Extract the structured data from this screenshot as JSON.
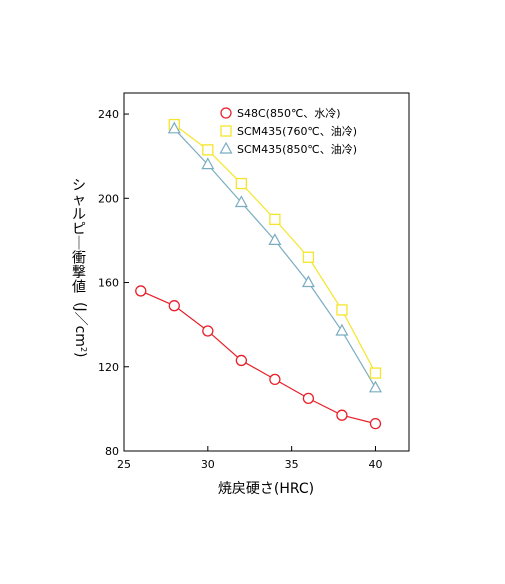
{
  "chart_data": {
    "type": "line",
    "title": "",
    "xlabel": "焼戻硬さ(HRC)",
    "ylabel": "シャルピー衝撃値(J/cm²)",
    "ylabel_main": "シャルピー衝撃値",
    "ylabel_unit_j": "J",
    "ylabel_unit_slash": "／",
    "ylabel_unit_cm": "cm",
    "ylabel_unit_sup": "2",
    "xlim": [
      25,
      42
    ],
    "ylim": [
      80,
      250
    ],
    "xticks": [
      25,
      30,
      35,
      40
    ],
    "yticks": [
      80,
      120,
      160,
      200,
      240
    ],
    "grid": false,
    "legend_position": "top-center",
    "series": [
      {
        "name": "S48C(850℃、水冷)",
        "marker": "circle",
        "color": "#e8202a",
        "x": [
          26,
          28,
          30,
          32,
          34,
          36,
          38,
          40
        ],
        "y": [
          156,
          149,
          137,
          123,
          114,
          105,
          97,
          93
        ]
      },
      {
        "name": "SCM435(760℃、油冷)",
        "marker": "square",
        "color": "#f5e52a",
        "x": [
          28,
          30,
          32,
          34,
          36,
          38,
          40
        ],
        "y": [
          235,
          223,
          207,
          190,
          172,
          147,
          117
        ]
      },
      {
        "name": "SCM435(850℃、油冷)",
        "marker": "triangle",
        "color": "#7aadc0",
        "x": [
          28,
          30,
          32,
          34,
          36,
          38,
          40
        ],
        "y": [
          233,
          216,
          198,
          180,
          160,
          137,
          110
        ]
      }
    ]
  }
}
